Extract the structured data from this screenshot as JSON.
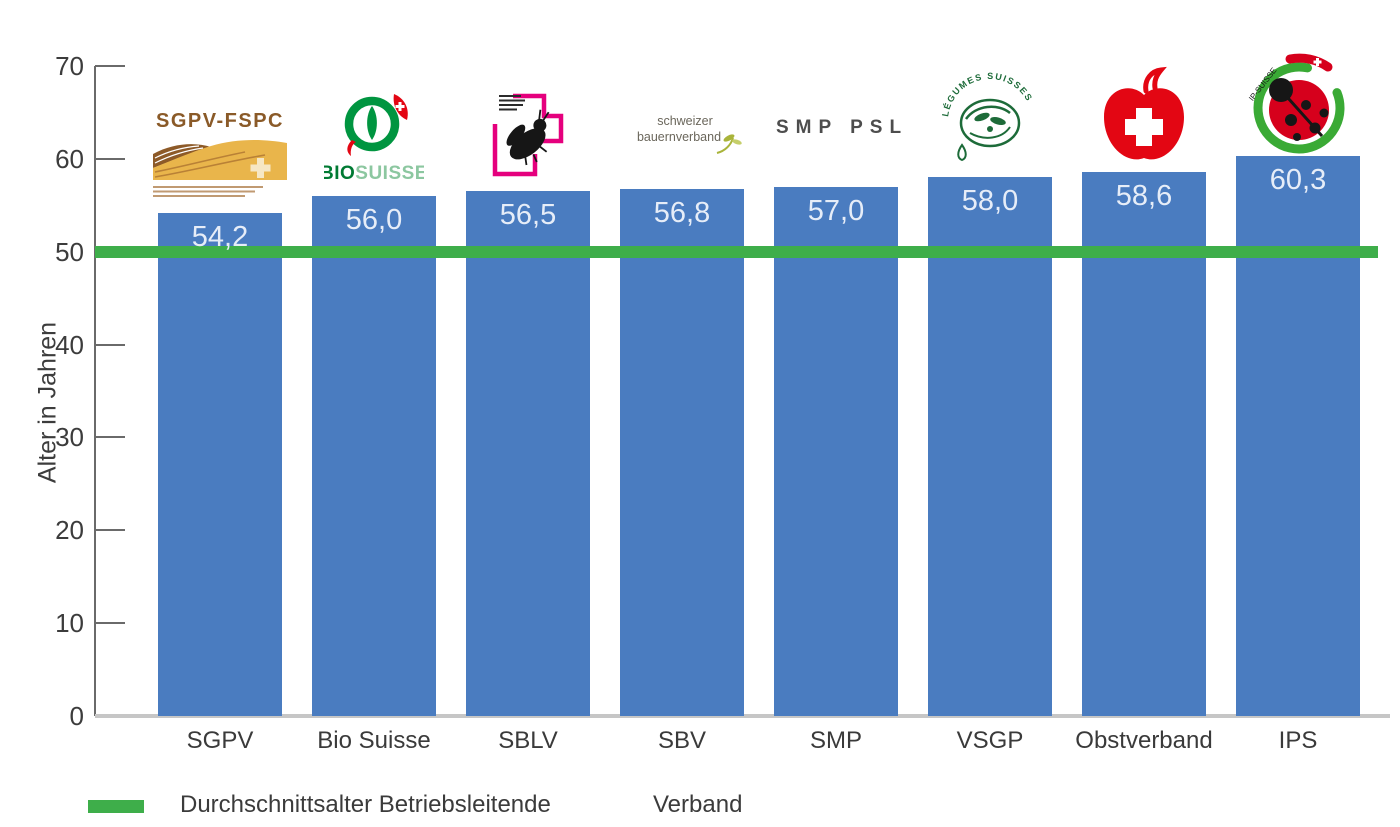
{
  "chart_data": {
    "type": "bar",
    "categories": [
      "SGPV",
      "Bio Suisse",
      "SBLV",
      "SBV",
      "SMP",
      "VSGP",
      "Obstverband",
      "IPS"
    ],
    "values": [
      54.2,
      56.0,
      56.5,
      56.8,
      57.0,
      58.0,
      58.6,
      60.3
    ],
    "value_labels": [
      "54,2",
      "56,0",
      "56,5",
      "56,8",
      "57,0",
      "58,0",
      "58,6",
      "60,3"
    ],
    "title": "",
    "xlabel": "Verband",
    "ylabel": "Alter in Jahren",
    "ylim": [
      0,
      70
    ],
    "yticks": [
      0,
      10,
      20,
      30,
      40,
      50,
      60,
      70
    ],
    "grid": false,
    "bar_color": "#4a7cc0",
    "value_label_color": "#e6edf8",
    "reference_line": {
      "value": 50,
      "label": "Durchschnittsalter Betriebsleitende",
      "color": "#3eae4a"
    },
    "legend_position": "bottom"
  },
  "legend": {
    "reference_label": "Durchschnittsalter Betriebsleitende",
    "x_axis_label": "Verband"
  },
  "logos": {
    "sgpv": {
      "title": "SGPV-FSPC"
    },
    "bio_suisse": {
      "text_bold": "BIO",
      "text_light": "SUISSE"
    },
    "sbv": {
      "line1": "schweizer",
      "line2": "bauernverband"
    },
    "smp": {
      "text": "SMP PSL"
    },
    "vsgp": {
      "ring_text": "LÉGUMES SUISSES"
    },
    "ips": {
      "text": "IP-SUISSE"
    }
  },
  "colors": {
    "bar": "#4a7cc0",
    "reference_line": "#3eae4a",
    "axis": "#6a6a6a",
    "baseline": "#c6c6c6",
    "text": "#3c3c3c"
  }
}
